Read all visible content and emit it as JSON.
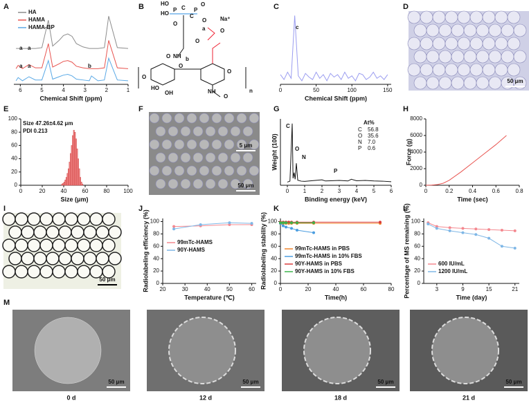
{
  "panel_labels": [
    "A",
    "B",
    "C",
    "D",
    "E",
    "F",
    "G",
    "H",
    "I",
    "J",
    "K",
    "L",
    "M"
  ],
  "structure": {
    "labels": [
      "HO",
      "HO",
      "P",
      "P",
      "C",
      "C",
      "O",
      "O",
      "Na⁺",
      "O",
      "NH",
      "b",
      "O",
      "O",
      "a",
      "O",
      "O",
      "HO",
      "OH",
      "O",
      "O",
      "NH",
      "O",
      "n"
    ]
  },
  "chart_data": [
    {
      "type": "line",
      "xlabel": "Chemical Shift (ppm)",
      "x": [
        6.2,
        6.1,
        5.9,
        5.6,
        5.3,
        5.0,
        4.7,
        4.5,
        4.2,
        4.0,
        3.8,
        3.6,
        3.4,
        3.1,
        2.8,
        2.7,
        2.4,
        2.1,
        1.9,
        1.5,
        1.0
      ],
      "xlim": [
        6.3,
        1
      ],
      "xticks": [
        6,
        5,
        4,
        3,
        2,
        1
      ],
      "legend": "top-left",
      "series": [
        {
          "name": "HA",
          "color": "#8c8c8c",
          "values": [
            6.0,
            6.0,
            6.0,
            6.0,
            6.0,
            6.1,
            9.5,
            6.3,
            7.0,
            7.6,
            7.8,
            7.5,
            6.6,
            6.2,
            6.0,
            6.0,
            6.0,
            6.1,
            10.0,
            6.1,
            6.0
          ]
        },
        {
          "name": "HAMA",
          "color": "#e8534f",
          "values": [
            3.5,
            3.9,
            3.5,
            4.0,
            3.6,
            3.6,
            6.6,
            3.7,
            4.1,
            4.4,
            4.5,
            4.3,
            3.8,
            3.6,
            3.5,
            3.5,
            3.5,
            3.6,
            7.0,
            3.6,
            3.5
          ]
        },
        {
          "name": "HAMA-BP",
          "color": "#5aa9e6",
          "values": [
            2.0,
            2.4,
            2.0,
            2.5,
            2.1,
            2.1,
            4.5,
            2.2,
            2.5,
            2.7,
            2.8,
            2.6,
            2.2,
            2.1,
            2.0,
            2.6,
            2.0,
            2.1,
            4.8,
            2.1,
            2.0
          ]
        }
      ],
      "annotations": [
        "a",
        "a",
        "a",
        "a",
        "b"
      ]
    },
    {
      "type": "line",
      "xlabel": "Chemical Shift (ppm)",
      "x": [
        0,
        5,
        10,
        15,
        20,
        25,
        30,
        35,
        40,
        45,
        50,
        55,
        60,
        65,
        70,
        75,
        80,
        85,
        90,
        95,
        100,
        105,
        110,
        115,
        120,
        125,
        130,
        135,
        140,
        145,
        150
      ],
      "xlim": [
        0,
        155
      ],
      "xticks": [
        0,
        50,
        100,
        150
      ],
      "series": [
        {
          "color": "#9a9cf0",
          "values": [
            1.2,
            0.8,
            1.4,
            0.9,
            6.0,
            1.1,
            0.7,
            1.3,
            1.0,
            0.8,
            1.4,
            0.9,
            1.2,
            0.7,
            1.3,
            1.0,
            1.2,
            0.8,
            1.4,
            0.9,
            1.1,
            0.7,
            1.3,
            1.2,
            0.8,
            1.0,
            1.4,
            0.9,
            1.1,
            0.8,
            1.2
          ]
        }
      ],
      "annotations": [
        "c"
      ]
    },
    {
      "type": "histogram",
      "text": [
        "Size 47.26±4.62 μm",
        "PDI  0.213"
      ],
      "xlabel": "Size (μm)",
      "color": "#f08080",
      "bins": [
        38,
        39,
        40,
        41,
        42,
        43,
        44,
        45,
        46,
        47,
        48,
        49,
        50,
        51,
        52,
        53,
        54,
        55,
        56,
        57,
        58
      ],
      "values": [
        2,
        3,
        5,
        8,
        12,
        18,
        25,
        35,
        48,
        60,
        75,
        83,
        80,
        70,
        55,
        40,
        25,
        12,
        5,
        2
      ],
      "xlim": [
        0,
        100
      ],
      "xticks": [
        0,
        20,
        40,
        60,
        80,
        100
      ],
      "ylim": [
        0,
        100
      ],
      "yticks": [
        0,
        20,
        40,
        60,
        80,
        100
      ]
    },
    {
      "type": "line",
      "xlabel": "Binding energy (keV)",
      "ylabel": "Weight (100)",
      "x": [
        0,
        0.15,
        0.28,
        0.33,
        0.39,
        0.45,
        0.52,
        0.6,
        0.8,
        1.0,
        1.5,
        2.0,
        2.2,
        2.5,
        3.0,
        3.5,
        3.7,
        4.0,
        4.5,
        5.0,
        5.5,
        6.0
      ],
      "xlim": [
        -0.4,
        6
      ],
      "xticks": [
        0,
        1,
        2,
        3,
        4,
        5,
        6
      ],
      "series": [
        {
          "color": "#111111",
          "values": [
            0,
            0.5,
            31,
            2,
            5,
            1.5,
            10,
            1,
            0.5,
            0.4,
            0.8,
            1.2,
            0.6,
            0.7,
            0.9,
            0.6,
            1.5,
            0.7,
            0.9,
            0.6,
            0.5,
            0.2
          ]
        }
      ],
      "annotations": [
        "C",
        "O",
        "N",
        "P"
      ],
      "table": {
        "title": "At%",
        "rows": [
          [
            "C",
            "56.8"
          ],
          [
            "O",
            "35.6"
          ],
          [
            "N",
            "7.0"
          ],
          [
            "P",
            "0.6"
          ]
        ]
      }
    },
    {
      "type": "line",
      "xlabel": "Time (sec)",
      "ylabel": "Force (g)",
      "x": [
        0,
        0.05,
        0.1,
        0.15,
        0.2,
        0.3,
        0.4,
        0.5,
        0.6,
        0.69
      ],
      "xlim": [
        0,
        0.8
      ],
      "xticks": [
        0,
        0.2,
        0.4,
        0.6,
        0.8
      ],
      "ylim": [
        0,
        8000
      ],
      "yticks": [
        0,
        2000,
        4000,
        6000,
        8000
      ],
      "series": [
        {
          "color": "#e8534f",
          "values": [
            0,
            20,
            80,
            250,
            600,
            1600,
            2700,
            3800,
            4900,
            6000
          ]
        }
      ]
    },
    {
      "type": "line",
      "markers": true,
      "xlabel": "Temperature (℃)",
      "ylabel": "Radiolabeling efficiency (%)",
      "x": [
        25,
        37,
        50,
        60
      ],
      "xlim": [
        20,
        62
      ],
      "xticks": [
        20,
        30,
        40,
        50,
        60
      ],
      "ylim": [
        0,
        105
      ],
      "yticks": [
        0,
        20,
        40,
        60,
        80,
        100
      ],
      "legend": "center-left",
      "series": [
        {
          "name": "99mTc-HAMS",
          "color": "#f4888f",
          "values": [
            92,
            93,
            95,
            95
          ]
        },
        {
          "name": "90Y-HAMS",
          "color": "#7fb7e6",
          "values": [
            88,
            95,
            98,
            97
          ]
        }
      ]
    },
    {
      "type": "line",
      "markers": true,
      "xlabel": "Time(h)",
      "ylabel": "Radiolabeling stability (%)",
      "xlim": [
        0,
        80
      ],
      "xticks": [
        0,
        20,
        40,
        60,
        80
      ],
      "ylim": [
        0,
        105
      ],
      "yticks": [
        0,
        20,
        40,
        60,
        80,
        100
      ],
      "legend": "bottom-left",
      "series": [
        {
          "name": "99mTc-HAMS in PBS",
          "color": "#f0852d",
          "x": [
            0,
            2,
            4,
            6,
            8,
            12,
            24,
            72
          ],
          "values": [
            97,
            97,
            97,
            97,
            97,
            97,
            97,
            97
          ]
        },
        {
          "name": "99mTc-HAMS in 10% FBS",
          "color": "#4a9de0",
          "x": [
            0,
            2,
            4,
            8,
            12,
            24
          ],
          "values": [
            97,
            93,
            91,
            89,
            86,
            82
          ]
        },
        {
          "name": "90Y-HAMS in PBS",
          "color": "#d93a3a",
          "x": [
            0,
            2,
            4,
            6,
            8,
            12,
            24,
            72
          ],
          "values": [
            99,
            99,
            99,
            99,
            99,
            99,
            99,
            99
          ]
        },
        {
          "name": "90Y-HAMS in 10% FBS",
          "color": "#3cb44b",
          "x": [
            0,
            2,
            4,
            8,
            12,
            24
          ],
          "values": [
            98,
            98,
            98,
            98,
            98,
            98
          ]
        }
      ]
    },
    {
      "type": "line",
      "markers": true,
      "xlabel": "Time  (day)",
      "ylabel": "Percentage of MS remaining (%)",
      "x": [
        1,
        3,
        6,
        9,
        12,
        15,
        18,
        21
      ],
      "xlim": [
        0,
        22
      ],
      "xticks": [
        3,
        9,
        15,
        21
      ],
      "ylim": [
        0,
        105
      ],
      "yticks": [
        0,
        20,
        40,
        60,
        80,
        100
      ],
      "legend": "bottom-left",
      "series": [
        {
          "name": "600 IU/mL",
          "color": "#f4888f",
          "values": [
            98,
            92,
            90,
            89,
            88,
            87,
            86,
            85
          ]
        },
        {
          "name": "1200 IU/mL",
          "color": "#7fb7e6",
          "values": [
            96,
            89,
            85,
            82,
            79,
            73,
            60,
            57
          ]
        }
      ]
    }
  ],
  "images": [
    {
      "scale_bars": [
        "50 μm"
      ]
    },
    {
      "scale_bars": [
        "5 μm",
        "50 μm"
      ]
    },
    {
      "scale_bars": [
        "50 μm"
      ]
    },
    {
      "scale_bars": [
        "50 μm"
      ],
      "caption": "0 d"
    },
    {
      "scale_bars": [
        "50 μm"
      ],
      "caption": "12 d"
    },
    {
      "scale_bars": [
        "50 μm"
      ],
      "caption": "18 d"
    },
    {
      "scale_bars": [
        "50 μm"
      ],
      "caption": "21 d"
    }
  ]
}
